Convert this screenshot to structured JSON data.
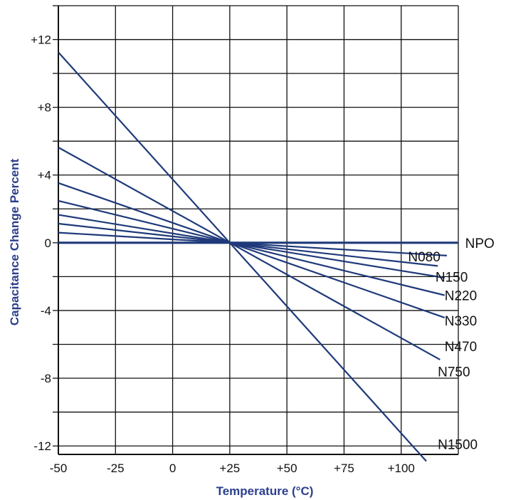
{
  "colors": {
    "series": "#1f3a7a",
    "grid": "#111111",
    "axis_title": "#2b3f8c",
    "text": "#111111"
  },
  "chart_data": {
    "type": "line",
    "title": "",
    "xlabel": "Temperature (°C)",
    "ylabel": "Capacitance Change Percent",
    "xlim": [
      -50,
      125
    ],
    "ylim": [
      -12.5,
      14
    ],
    "grid": true,
    "x_tick_labels": [
      {
        "value": -50,
        "label": "-50"
      },
      {
        "value": -25,
        "label": "-25"
      },
      {
        "value": 0,
        "label": "0"
      },
      {
        "value": 25,
        "label": "+25"
      },
      {
        "value": 50,
        "label": "+50"
      },
      {
        "value": 75,
        "label": "+75"
      },
      {
        "value": 100,
        "label": "+100"
      }
    ],
    "x_grid": [
      -50,
      -25,
      0,
      25,
      50,
      75,
      100,
      125
    ],
    "y_tick_labels": [
      {
        "value": 12,
        "label": "+12"
      },
      {
        "value": 8,
        "label": "+8"
      },
      {
        "value": 4,
        "label": "+4"
      },
      {
        "value": 0,
        "label": "0"
      },
      {
        "value": -4,
        "label": "-4"
      },
      {
        "value": -8,
        "label": "-8"
      },
      {
        "value": -12,
        "label": "-12"
      }
    ],
    "y_grid": [
      14,
      12,
      10,
      8,
      6,
      4,
      2,
      0,
      -2,
      -4,
      -6,
      -8,
      -10,
      -12
    ],
    "series": [
      {
        "name": "NPO",
        "x": [
          -50,
          125
        ],
        "y": [
          0,
          0
        ],
        "label_at": [
          128,
          0
        ]
      },
      {
        "name": "N080",
        "x": [
          -50,
          120
        ],
        "y": [
          0.6,
          -0.76
        ],
        "label_at": [
          103,
          -0.8
        ]
      },
      {
        "name": "N150",
        "x": [
          -50,
          116
        ],
        "y": [
          1.13,
          -1.37
        ],
        "label_at": [
          115,
          -2.0
        ]
      },
      {
        "name": "N220",
        "x": [
          -50,
          119
        ],
        "y": [
          1.65,
          -2.07
        ],
        "label_at": [
          119,
          -3.1
        ]
      },
      {
        "name": "N330",
        "x": [
          -50,
          119
        ],
        "y": [
          2.48,
          -3.1
        ],
        "label_at": [
          119,
          -4.6
        ]
      },
      {
        "name": "N470",
        "x": [
          -50,
          119
        ],
        "y": [
          3.53,
          -4.42
        ],
        "label_at": [
          119,
          -6.1
        ]
      },
      {
        "name": "N750",
        "x": [
          -50,
          117
        ],
        "y": [
          5.63,
          -6.9
        ],
        "label_at": [
          116,
          -7.6
        ]
      },
      {
        "name": "N1500",
        "x": [
          -50,
          111
        ],
        "y": [
          11.25,
          -12.9
        ],
        "label_at": [
          116,
          -11.9
        ]
      }
    ]
  }
}
